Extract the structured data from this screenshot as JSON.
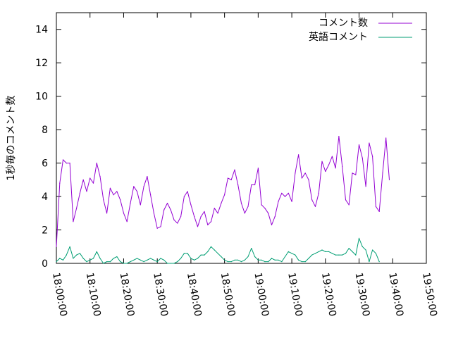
{
  "chart_data": {
    "type": "line",
    "title": "",
    "xlabel": "",
    "ylabel": "1秒毎のコメント数",
    "ylim": [
      0,
      15
    ],
    "yticks": [
      "0",
      "2",
      "4",
      "6",
      "8",
      "10",
      "12",
      "14"
    ],
    "xticks": [
      "18:00:00",
      "18:10:00",
      "18:20:00",
      "18:30:00",
      "18:40:00",
      "18:50:00",
      "19:00:00",
      "19:10:00",
      "19:20:00",
      "19:30:00",
      "19:40:00",
      "19:50:00"
    ],
    "xlim": [
      "18:00:00",
      "19:50:00"
    ],
    "grid": false,
    "legend_position": "top-right",
    "series": [
      {
        "name": "コメント数",
        "color": "#9400d3",
        "points": [
          [
            "18:00:00",
            1.0
          ],
          [
            "18:01:00",
            4.8
          ],
          [
            "18:02:00",
            6.2
          ],
          [
            "18:03:00",
            6.0
          ],
          [
            "18:04:00",
            6.0
          ],
          [
            "18:05:00",
            2.5
          ],
          [
            "18:06:00",
            3.3
          ],
          [
            "18:07:00",
            4.2
          ],
          [
            "18:08:00",
            5.0
          ],
          [
            "18:09:00",
            4.3
          ],
          [
            "18:10:00",
            5.1
          ],
          [
            "18:11:00",
            4.8
          ],
          [
            "18:12:00",
            6.0
          ],
          [
            "18:13:00",
            5.2
          ],
          [
            "18:14:00",
            3.8
          ],
          [
            "18:15:00",
            3.0
          ],
          [
            "18:16:00",
            4.5
          ],
          [
            "18:17:00",
            4.1
          ],
          [
            "18:18:00",
            4.3
          ],
          [
            "18:19:00",
            3.8
          ],
          [
            "18:20:00",
            3.0
          ],
          [
            "18:21:00",
            2.5
          ],
          [
            "18:22:00",
            3.6
          ],
          [
            "18:23:00",
            4.6
          ],
          [
            "18:24:00",
            4.3
          ],
          [
            "18:25:00",
            3.5
          ],
          [
            "18:26:00",
            4.6
          ],
          [
            "18:27:00",
            5.2
          ],
          [
            "18:28:00",
            4.1
          ],
          [
            "18:29:00",
            3.0
          ],
          [
            "18:30:00",
            2.1
          ],
          [
            "18:31:00",
            2.2
          ],
          [
            "18:32:00",
            3.2
          ],
          [
            "18:33:00",
            3.6
          ],
          [
            "18:34:00",
            3.2
          ],
          [
            "18:35:00",
            2.6
          ],
          [
            "18:36:00",
            2.4
          ],
          [
            "18:37:00",
            2.8
          ],
          [
            "18:38:00",
            4.0
          ],
          [
            "18:39:00",
            4.3
          ],
          [
            "18:40:00",
            3.5
          ],
          [
            "18:41:00",
            2.8
          ],
          [
            "18:42:00",
            2.2
          ],
          [
            "18:43:00",
            2.8
          ],
          [
            "18:44:00",
            3.1
          ],
          [
            "18:45:00",
            2.3
          ],
          [
            "18:46:00",
            2.5
          ],
          [
            "18:47:00",
            3.3
          ],
          [
            "18:48:00",
            3.0
          ],
          [
            "18:49:00",
            3.6
          ],
          [
            "18:50:00",
            4.1
          ],
          [
            "18:51:00",
            5.1
          ],
          [
            "18:52:00",
            5.0
          ],
          [
            "18:53:00",
            5.6
          ],
          [
            "18:54:00",
            4.7
          ],
          [
            "18:55:00",
            3.6
          ],
          [
            "18:56:00",
            3.0
          ],
          [
            "18:57:00",
            3.4
          ],
          [
            "18:58:00",
            4.7
          ],
          [
            "18:59:00",
            4.7
          ],
          [
            "19:00:00",
            5.7
          ],
          [
            "19:01:00",
            3.5
          ],
          [
            "19:02:00",
            3.3
          ],
          [
            "19:03:00",
            3.0
          ],
          [
            "19:04:00",
            2.3
          ],
          [
            "19:05:00",
            2.8
          ],
          [
            "19:06:00",
            3.7
          ],
          [
            "19:07:00",
            4.2
          ],
          [
            "19:08:00",
            4.0
          ],
          [
            "19:09:00",
            4.2
          ],
          [
            "19:10:00",
            3.7
          ],
          [
            "19:11:00",
            5.4
          ],
          [
            "19:12:00",
            6.5
          ],
          [
            "19:13:00",
            5.1
          ],
          [
            "19:14:00",
            5.4
          ],
          [
            "19:15:00",
            5.0
          ],
          [
            "19:16:00",
            3.8
          ],
          [
            "19:17:00",
            3.4
          ],
          [
            "19:18:00",
            4.2
          ],
          [
            "19:19:00",
            6.1
          ],
          [
            "19:20:00",
            5.5
          ],
          [
            "19:21:00",
            5.9
          ],
          [
            "19:22:00",
            6.4
          ],
          [
            "19:23:00",
            5.7
          ],
          [
            "19:24:00",
            7.6
          ],
          [
            "19:25:00",
            5.8
          ],
          [
            "19:26:00",
            3.8
          ],
          [
            "19:27:00",
            3.5
          ],
          [
            "19:28:00",
            5.4
          ],
          [
            "19:29:00",
            5.3
          ],
          [
            "19:30:00",
            7.1
          ],
          [
            "19:31:00",
            6.3
          ],
          [
            "19:32:00",
            4.6
          ],
          [
            "19:33:00",
            7.2
          ],
          [
            "19:34:00",
            6.4
          ],
          [
            "19:35:00",
            3.4
          ],
          [
            "19:36:00",
            3.1
          ],
          [
            "19:37:00",
            5.4
          ],
          [
            "19:38:00",
            7.5
          ],
          [
            "19:39:00",
            5.0
          ]
        ]
      },
      {
        "name": "英語コメント",
        "color": "#009e73",
        "points": [
          [
            "18:00:00",
            0.1
          ],
          [
            "18:01:00",
            0.3
          ],
          [
            "18:02:00",
            0.2
          ],
          [
            "18:03:00",
            0.5
          ],
          [
            "18:04:00",
            1.0
          ],
          [
            "18:05:00",
            0.3
          ],
          [
            "18:06:00",
            0.5
          ],
          [
            "18:07:00",
            0.6
          ],
          [
            "18:08:00",
            0.3
          ],
          [
            "18:09:00",
            0.1
          ],
          [
            "18:10:00",
            0.2
          ],
          [
            "18:11:00",
            0.3
          ],
          [
            "18:12:00",
            0.7
          ],
          [
            "18:13:00",
            0.3
          ],
          [
            "18:14:00",
            0.0
          ],
          [
            "18:15:00",
            0.1
          ],
          [
            "18:16:00",
            0.1
          ],
          [
            "18:17:00",
            0.3
          ],
          [
            "18:18:00",
            0.4
          ],
          [
            "18:19:00",
            0.1
          ],
          [
            "18:20:00",
            0.0
          ],
          [
            "18:21:00",
            0.0
          ],
          [
            "18:22:00",
            0.1
          ],
          [
            "18:23:00",
            0.2
          ],
          [
            "18:24:00",
            0.3
          ],
          [
            "18:25:00",
            0.2
          ],
          [
            "18:26:00",
            0.1
          ],
          [
            "18:27:00",
            0.2
          ],
          [
            "18:28:00",
            0.3
          ],
          [
            "18:29:00",
            0.2
          ],
          [
            "18:30:00",
            0.1
          ],
          [
            "18:31:00",
            0.3
          ],
          [
            "18:32:00",
            0.2
          ],
          [
            "18:33:00",
            0.0
          ],
          [
            "18:34:00",
            0.0
          ],
          [
            "18:35:00",
            0.0
          ],
          [
            "18:36:00",
            0.1
          ],
          [
            "18:37:00",
            0.3
          ],
          [
            "18:38:00",
            0.6
          ],
          [
            "18:39:00",
            0.6
          ],
          [
            "18:40:00",
            0.3
          ],
          [
            "18:41:00",
            0.2
          ],
          [
            "18:42:00",
            0.3
          ],
          [
            "18:43:00",
            0.5
          ],
          [
            "18:44:00",
            0.5
          ],
          [
            "18:45:00",
            0.7
          ],
          [
            "18:46:00",
            1.0
          ],
          [
            "18:47:00",
            0.8
          ],
          [
            "18:48:00",
            0.6
          ],
          [
            "18:49:00",
            0.4
          ],
          [
            "18:50:00",
            0.2
          ],
          [
            "18:51:00",
            0.1
          ],
          [
            "18:52:00",
            0.1
          ],
          [
            "18:53:00",
            0.2
          ],
          [
            "18:54:00",
            0.2
          ],
          [
            "18:55:00",
            0.1
          ],
          [
            "18:56:00",
            0.2
          ],
          [
            "18:57:00",
            0.4
          ],
          [
            "18:58:00",
            0.9
          ],
          [
            "18:59:00",
            0.4
          ],
          [
            "19:00:00",
            0.2
          ],
          [
            "19:01:00",
            0.2
          ],
          [
            "19:02:00",
            0.1
          ],
          [
            "19:03:00",
            0.1
          ],
          [
            "19:04:00",
            0.3
          ],
          [
            "19:05:00",
            0.2
          ],
          [
            "19:06:00",
            0.2
          ],
          [
            "19:07:00",
            0.1
          ],
          [
            "19:08:00",
            0.4
          ],
          [
            "19:09:00",
            0.7
          ],
          [
            "19:10:00",
            0.6
          ],
          [
            "19:11:00",
            0.5
          ],
          [
            "19:12:00",
            0.2
          ],
          [
            "19:13:00",
            0.1
          ],
          [
            "19:14:00",
            0.1
          ],
          [
            "19:15:00",
            0.3
          ],
          [
            "19:16:00",
            0.5
          ],
          [
            "19:17:00",
            0.6
          ],
          [
            "19:18:00",
            0.7
          ],
          [
            "19:19:00",
            0.8
          ],
          [
            "19:20:00",
            0.7
          ],
          [
            "19:21:00",
            0.7
          ],
          [
            "19:22:00",
            0.6
          ],
          [
            "19:23:00",
            0.5
          ],
          [
            "19:24:00",
            0.5
          ],
          [
            "19:25:00",
            0.5
          ],
          [
            "19:26:00",
            0.6
          ],
          [
            "19:27:00",
            0.9
          ],
          [
            "19:28:00",
            0.7
          ],
          [
            "19:29:00",
            0.5
          ],
          [
            "19:30:00",
            1.5
          ],
          [
            "19:31:00",
            1.0
          ],
          [
            "19:32:00",
            0.8
          ],
          [
            "19:33:00",
            0.1
          ],
          [
            "19:34:00",
            0.8
          ],
          [
            "19:35:00",
            0.6
          ],
          [
            "19:36:00",
            0.1
          ]
        ]
      }
    ]
  }
}
